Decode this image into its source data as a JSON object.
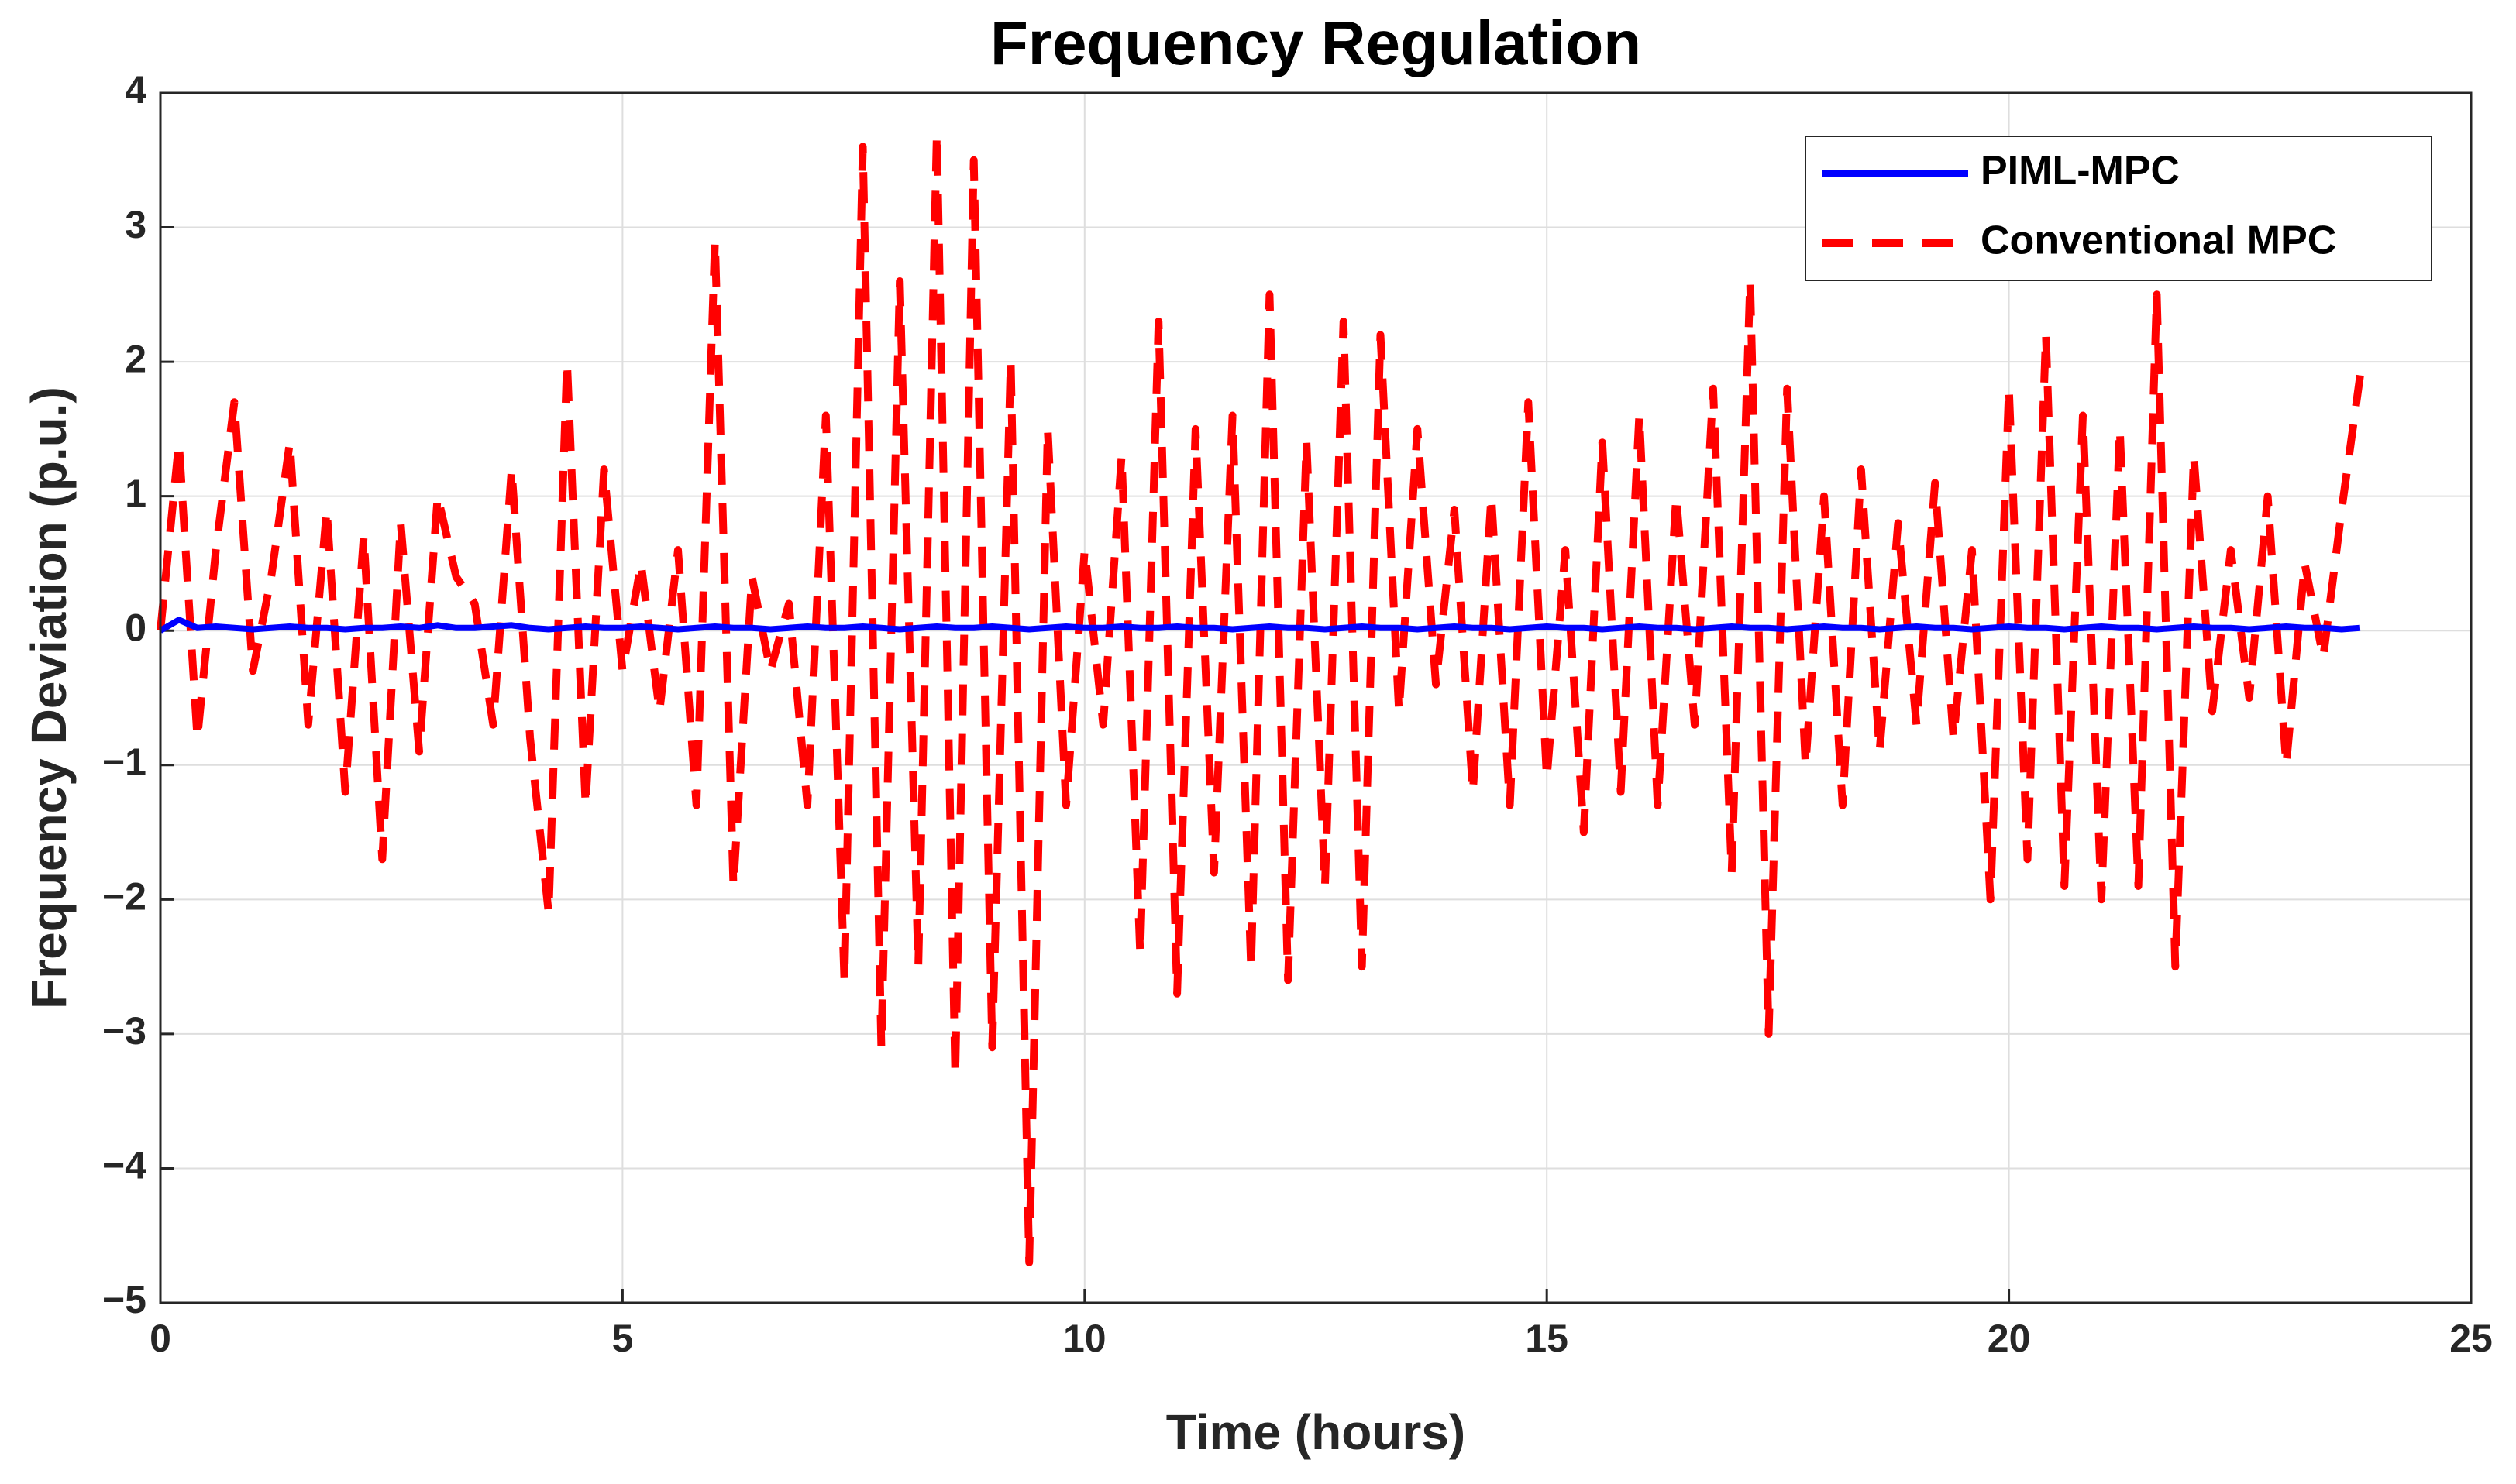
{
  "chart_data": {
    "type": "line",
    "title": "Frequency Regulation",
    "x_label": "Time (hours)",
    "y_label": "Frequency Deviation (p.u.)",
    "x": [
      0,
      0.2,
      0.4,
      0.6,
      0.8,
      1,
      1.2,
      1.4,
      1.6,
      1.8,
      2,
      2.2,
      2.4,
      2.6,
      2.8,
      3,
      3.2,
      3.4,
      3.6,
      3.8,
      4,
      4.2,
      4.4,
      4.6,
      4.8,
      5,
      5.2,
      5.4,
      5.6,
      5.8,
      6,
      6.2,
      6.4,
      6.6,
      6.8,
      7,
      7.2,
      7.4,
      7.6,
      7.8,
      8,
      8.2,
      8.4,
      8.6,
      8.8,
      9,
      9.2,
      9.4,
      9.6,
      9.8,
      10,
      10.2,
      10.4,
      10.6,
      10.8,
      11,
      11.2,
      11.4,
      11.6,
      11.8,
      12,
      12.2,
      12.4,
      12.6,
      12.8,
      13,
      13.2,
      13.4,
      13.6,
      13.8,
      14,
      14.2,
      14.4,
      14.6,
      14.8,
      15,
      15.2,
      15.4,
      15.6,
      15.8,
      16,
      16.2,
      16.4,
      16.6,
      16.8,
      17,
      17.2,
      17.4,
      17.6,
      17.8,
      18,
      18.2,
      18.4,
      18.6,
      18.8,
      19,
      19.2,
      19.4,
      19.6,
      19.8,
      20,
      20.2,
      20.4,
      20.6,
      20.8,
      21,
      21.2,
      21.4,
      21.6,
      21.8,
      22,
      22.2,
      22.4,
      22.6,
      22.8,
      23,
      23.2,
      23.4,
      23.6,
      23.8
    ],
    "series": [
      {
        "name": "PIML-MPC",
        "color": "#0000ff",
        "line_style": "solid",
        "values": [
          0,
          0.08,
          0.02,
          0.03,
          0.02,
          0.01,
          0.02,
          0.03,
          0.02,
          0.02,
          0.01,
          0.02,
          0.02,
          0.03,
          0.02,
          0.04,
          0.02,
          0.02,
          0.03,
          0.04,
          0.02,
          0.01,
          0.02,
          0.03,
          0.02,
          0.02,
          0.03,
          0.02,
          0.01,
          0.02,
          0.03,
          0.02,
          0.02,
          0.01,
          0.02,
          0.03,
          0.02,
          0.02,
          0.03,
          0.02,
          0.01,
          0.02,
          0.03,
          0.02,
          0.02,
          0.03,
          0.02,
          0.01,
          0.02,
          0.03,
          0.02,
          0.02,
          0.03,
          0.02,
          0.02,
          0.03,
          0.02,
          0.02,
          0.01,
          0.02,
          0.03,
          0.02,
          0.02,
          0.01,
          0.02,
          0.03,
          0.02,
          0.02,
          0.01,
          0.02,
          0.03,
          0.02,
          0.02,
          0.01,
          0.02,
          0.03,
          0.02,
          0.02,
          0.01,
          0.02,
          0.03,
          0.02,
          0.02,
          0.01,
          0.02,
          0.03,
          0.02,
          0.02,
          0.01,
          0.02,
          0.03,
          0.02,
          0.02,
          0.01,
          0.02,
          0.03,
          0.02,
          0.02,
          0.01,
          0.02,
          0.03,
          0.02,
          0.02,
          0.01,
          0.02,
          0.03,
          0.02,
          0.02,
          0.01,
          0.02,
          0.03,
          0.02,
          0.02,
          0.01,
          0.02,
          0.03,
          0.02,
          0.02,
          0.01,
          0.02
        ]
      },
      {
        "name": "Conventional MPC",
        "color": "#ff0000",
        "line_style": "dashed",
        "values": [
          0,
          1.4,
          -0.8,
          0.6,
          1.7,
          -0.3,
          0.4,
          1.4,
          -0.7,
          0.9,
          -1.2,
          0.7,
          -1.7,
          0.8,
          -0.9,
          1.0,
          0.4,
          0.2,
          -0.7,
          1.2,
          -0.8,
          -2.1,
          2.0,
          -1.3,
          1.2,
          -0.3,
          0.5,
          -0.6,
          0.6,
          -1.3,
          2.9,
          -1.9,
          0.4,
          -0.3,
          0.2,
          -1.3,
          1.6,
          -2.6,
          3.6,
          -3.1,
          2.6,
          -2.5,
          3.7,
          -3.3,
          3.5,
          -3.1,
          2.0,
          -4.7,
          1.5,
          -1.3,
          0.6,
          -0.7,
          1.3,
          -2.4,
          2.3,
          -2.7,
          1.5,
          -1.8,
          1.6,
          -2.5,
          2.5,
          -2.6,
          1.4,
          -1.9,
          2.3,
          -2.5,
          2.2,
          -0.6,
          1.5,
          -0.4,
          0.9,
          -1.2,
          1.0,
          -1.3,
          1.7,
          -1.1,
          0.6,
          -1.5,
          1.4,
          -1.2,
          1.6,
          -1.3,
          1.0,
          -0.7,
          1.8,
          -1.8,
          2.6,
          -3.0,
          1.8,
          -1.0,
          1.0,
          -1.3,
          1.2,
          -0.9,
          0.8,
          -0.7,
          1.1,
          -0.8,
          0.6,
          -2.0,
          1.8,
          -1.7,
          2.2,
          -1.9,
          1.6,
          -2.0,
          1.5,
          -1.9,
          2.5,
          -2.5,
          1.3,
          -0.6,
          0.6,
          -0.5,
          1.0,
          -1.0,
          0.5,
          -0.2,
          0.9,
          1.9
        ]
      }
    ],
    "xlim": [
      0,
      25
    ],
    "xticks": [
      0,
      5,
      10,
      15,
      20,
      25
    ],
    "ylim": [
      -5,
      4
    ],
    "yticks": [
      {
        "value": -5,
        "label": "−5"
      },
      {
        "value": -4,
        "label": "−4"
      },
      {
        "value": -3,
        "label": "−3"
      },
      {
        "value": -2,
        "label": "−2"
      },
      {
        "value": -1,
        "label": "−1"
      },
      0,
      1,
      2,
      3,
      4
    ],
    "grid": true,
    "legend": "upper right"
  }
}
